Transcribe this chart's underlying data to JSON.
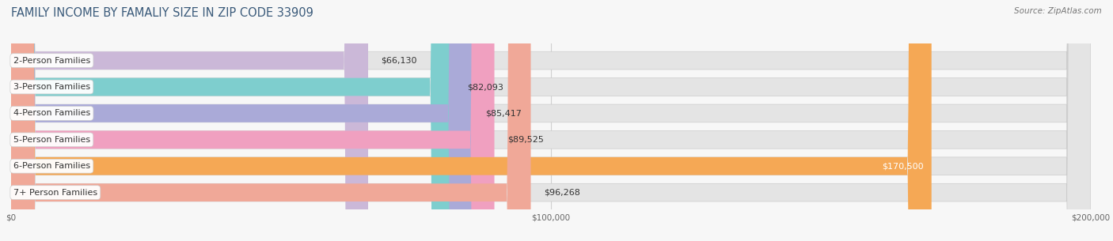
{
  "title": "FAMILY INCOME BY FAMALIY SIZE IN ZIP CODE 33909",
  "source": "Source: ZipAtlas.com",
  "categories": [
    "2-Person Families",
    "3-Person Families",
    "4-Person Families",
    "5-Person Families",
    "6-Person Families",
    "7+ Person Families"
  ],
  "values": [
    66130,
    82093,
    85417,
    89525,
    170500,
    96268
  ],
  "bar_colors": [
    "#cbb8d8",
    "#7ecece",
    "#aaaad8",
    "#f0a0c0",
    "#f5a855",
    "#f0a898"
  ],
  "bar_bg_color": "#e4e4e4",
  "value_labels": [
    "$66,130",
    "$82,093",
    "$85,417",
    "$89,525",
    "$170,500",
    "$96,268"
  ],
  "label_inside": [
    false,
    false,
    false,
    false,
    true,
    false
  ],
  "xmax": 200000,
  "xticks": [
    0,
    100000,
    200000
  ],
  "xtick_labels": [
    "$0",
    "$100,000",
    "$200,000"
  ],
  "background_color": "#f7f7f7",
  "title_color": "#3a5a7a",
  "source_color": "#777777",
  "title_fontsize": 10.5,
  "source_fontsize": 7.5,
  "label_fontsize": 8,
  "value_fontsize": 8,
  "bar_height": 0.68,
  "grid_color": "#d0d0d0"
}
